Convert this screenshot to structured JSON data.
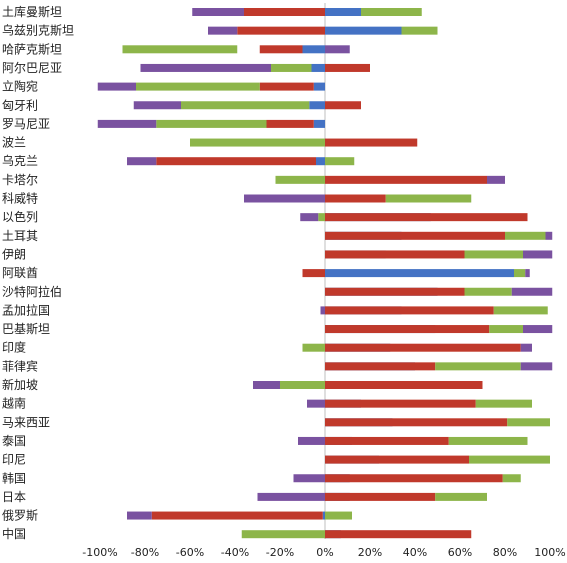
{
  "chart_data": {
    "type": "bar",
    "orientation": "horizontal",
    "stacked": true,
    "xlim": [
      -100,
      100
    ],
    "xticks": [
      -100,
      -80,
      -60,
      -40,
      -20,
      0,
      20,
      40,
      60,
      80,
      100
    ],
    "tick_labels": [
      "-100%",
      "-80%",
      "-60%",
      "-40%",
      "-20%",
      "0%",
      "20%",
      "40%",
      "60%",
      "80%",
      "100%"
    ],
    "grid": false,
    "legend": "none",
    "colors": [
      "#4472c4",
      "#c0392b",
      "#8db54a",
      "#7a52a0"
    ],
    "categories": [
      "土库曼斯坦",
      "乌兹别克斯坦",
      "哈萨克斯坦",
      "阿尔巴尼亚",
      "立陶宛",
      "匈牙利",
      "罗马尼亚",
      "波兰",
      "乌克兰",
      "卡塔尔",
      "科威特",
      "以色列",
      "土耳其",
      "伊朗",
      "阿联酋",
      "沙特阿拉伯",
      "孟加拉国",
      "巴基斯坦",
      "印度",
      "菲律宾",
      "新加坡",
      "越南",
      "马来西亚",
      "泰国",
      "印尼",
      "韩国",
      "日本",
      "俄罗斯",
      "中国"
    ],
    "series": [
      {
        "values": [
          [
            0,
            16
          ],
          [
            0,
            34
          ],
          [
            -10,
            0
          ],
          [
            -6,
            0
          ],
          [
            -5,
            0
          ],
          [
            -7,
            0
          ],
          [
            -5,
            0
          ],
          [
            0,
            0
          ],
          [
            -4,
            0
          ],
          [
            0,
            0
          ],
          [
            -2,
            0
          ],
          [
            0,
            47
          ],
          [
            0,
            34
          ],
          [
            0,
            27
          ],
          [
            0,
            84
          ],
          [
            0,
            50
          ],
          [
            0,
            34
          ],
          [
            0,
            49
          ],
          [
            0,
            29
          ],
          [
            0,
            40
          ],
          [
            0,
            29
          ],
          [
            0,
            16
          ],
          [
            0,
            30
          ],
          [
            0,
            12
          ],
          [
            0,
            24
          ],
          [
            0,
            11
          ],
          [
            0,
            11
          ],
          [
            -1,
            0
          ],
          [
            0,
            7
          ]
        ]
      },
      {
        "values": [
          [
            -36,
            0
          ],
          [
            -39,
            0
          ],
          [
            -29,
            -10
          ],
          [
            0,
            20
          ],
          [
            -29,
            -5
          ],
          [
            0,
            16
          ],
          [
            -26,
            -5
          ],
          [
            0,
            41
          ],
          [
            -75,
            -4
          ],
          [
            0,
            72
          ],
          [
            0,
            27
          ],
          [
            0,
            90
          ],
          [
            0,
            80
          ],
          [
            0,
            62
          ],
          [
            -10,
            0
          ],
          [
            0,
            62
          ],
          [
            0,
            75
          ],
          [
            0,
            73
          ],
          [
            0,
            87
          ],
          [
            0,
            49
          ],
          [
            0,
            70
          ],
          [
            0,
            67
          ],
          [
            0,
            81
          ],
          [
            0,
            55
          ],
          [
            0,
            64
          ],
          [
            0,
            79
          ],
          [
            0,
            49
          ],
          [
            -77,
            -1
          ],
          [
            0,
            65
          ]
        ]
      },
      {
        "values": [
          [
            16,
            43
          ],
          [
            34,
            50
          ],
          [
            -90,
            -39
          ],
          [
            -24,
            -6
          ],
          [
            -84,
            -29
          ],
          [
            -64,
            -7
          ],
          [
            -75,
            -26
          ],
          [
            -60,
            0
          ],
          [
            0,
            13
          ],
          [
            -22,
            0
          ],
          [
            27,
            65
          ],
          [
            -3,
            0
          ],
          [
            80,
            98
          ],
          [
            62,
            88
          ],
          [
            84,
            89
          ],
          [
            62,
            83
          ],
          [
            75,
            99
          ],
          [
            73,
            88
          ],
          [
            -10,
            0
          ],
          [
            49,
            87
          ],
          [
            -20,
            0
          ],
          [
            67,
            92
          ],
          [
            81,
            100
          ],
          [
            55,
            90
          ],
          [
            64,
            100
          ],
          [
            79,
            87
          ],
          [
            49,
            72
          ],
          [
            0,
            12
          ],
          [
            -37,
            0
          ]
        ]
      },
      {
        "values": [
          [
            -59,
            -36
          ],
          [
            -52,
            -39
          ],
          [
            0,
            11
          ],
          [
            -82,
            -24
          ],
          [
            -101,
            -84
          ],
          [
            -85,
            -64
          ],
          [
            -101,
            -75
          ],
          [
            0,
            0
          ],
          [
            -88,
            -75
          ],
          [
            72,
            80
          ],
          [
            -36,
            0
          ],
          [
            -11,
            -3
          ],
          [
            98,
            101
          ],
          [
            88,
            101
          ],
          [
            89,
            91
          ],
          [
            83,
            101
          ],
          [
            -2,
            0
          ],
          [
            88,
            101
          ],
          [
            87,
            92
          ],
          [
            87,
            101
          ],
          [
            -32,
            -20
          ],
          [
            -8,
            0
          ],
          [
            0,
            0
          ],
          [
            -12,
            0
          ],
          [
            0,
            0
          ],
          [
            -14,
            0
          ],
          [
            -30,
            0
          ],
          [
            -88,
            -77
          ],
          [
            0,
            0
          ]
        ]
      }
    ]
  }
}
